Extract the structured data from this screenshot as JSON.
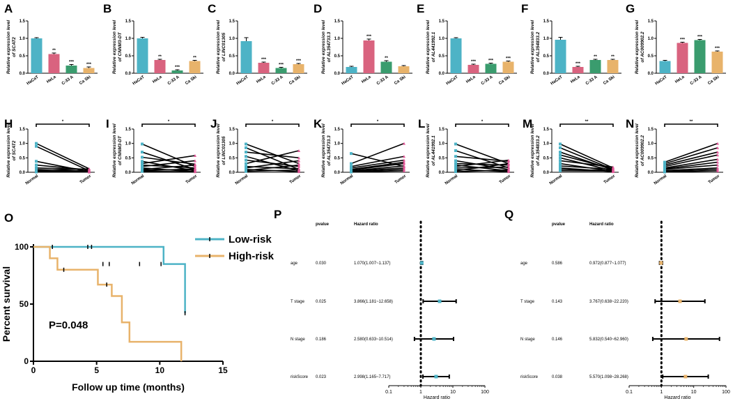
{
  "chart_data": [
    {
      "panel": "A",
      "type": "bar",
      "ylabel_line1": "Relative expression level",
      "ylabel_line2": "of SCAT2",
      "categories": [
        "HaCaT",
        "HeLa",
        "C-33 A",
        "Ca Ski"
      ],
      "values": [
        1.0,
        0.55,
        0.22,
        0.15
      ],
      "errors": [
        0.02,
        0.03,
        0.03,
        0.03
      ],
      "significance": [
        "",
        "**",
        "***",
        "***"
      ],
      "ylim": [
        0,
        1.5
      ],
      "yticks": [
        "0.0",
        "0.5",
        "1.0",
        "1.5"
      ]
    },
    {
      "panel": "B",
      "type": "bar",
      "ylabel_line1": "Relative expression level",
      "ylabel_line2": "of CNNM3-DT",
      "categories": [
        "HaCaT",
        "HeLa",
        "C-33 A",
        "Ca Ski"
      ],
      "values": [
        1.0,
        0.38,
        0.08,
        0.35
      ],
      "errors": [
        0.03,
        0.02,
        0.02,
        0.02
      ],
      "significance": [
        "",
        "**",
        "***",
        "**"
      ],
      "ylim": [
        0,
        1.5
      ],
      "yticks": [
        "0.0",
        "0.5",
        "1.0",
        "1.5"
      ]
    },
    {
      "panel": "C",
      "type": "bar",
      "ylabel_line1": "Relative expression level",
      "ylabel_line2": "of LINC01305",
      "categories": [
        "HaCaT",
        "HeLa",
        "C-33 A",
        "Ca Ski"
      ],
      "values": [
        0.92,
        0.3,
        0.15,
        0.26
      ],
      "errors": [
        0.1,
        0.02,
        0.02,
        0.02
      ],
      "significance": [
        "",
        "***",
        "***",
        "***"
      ],
      "ylim": [
        0,
        1.5
      ],
      "yticks": [
        "0.0",
        "0.5",
        "1.0",
        "1.5"
      ]
    },
    {
      "panel": "D",
      "type": "bar",
      "ylabel_line1": "Relative expression level",
      "ylabel_line2": "of AL354733.3",
      "categories": [
        "HaCaT",
        "HeLa",
        "C-33 A",
        "Ca Ski"
      ],
      "values": [
        0.18,
        0.94,
        0.33,
        0.2
      ],
      "errors": [
        0.02,
        0.04,
        0.03,
        0.02
      ],
      "significance": [
        "",
        "***",
        "**",
        ""
      ],
      "ylim": [
        0,
        1.5
      ],
      "yticks": [
        "0.0",
        "0.5",
        "1.0",
        "1.5"
      ]
    },
    {
      "panel": "E",
      "type": "bar",
      "ylabel_line1": "Relative expression level",
      "ylabel_line2": "of AL441992.1",
      "categories": [
        "HaCaT",
        "HeLa",
        "C-33 A",
        "Ca Ski"
      ],
      "values": [
        1.0,
        0.24,
        0.27,
        0.33
      ],
      "errors": [
        0.02,
        0.02,
        0.02,
        0.02
      ],
      "significance": [
        "",
        "***",
        "***",
        "***"
      ],
      "ylim": [
        0,
        1.5
      ],
      "yticks": [
        "0.0",
        "0.5",
        "1.0",
        "1.5"
      ]
    },
    {
      "panel": "F",
      "type": "bar",
      "ylabel_line1": "Relative expression level",
      "ylabel_line2": "of AL354833.2",
      "categories": [
        "HaCaT",
        "HeLa",
        "C-33 A",
        "Ca Ski"
      ],
      "values": [
        0.96,
        0.18,
        0.38,
        0.38
      ],
      "errors": [
        0.07,
        0.02,
        0.02,
        0.02
      ],
      "significance": [
        "",
        "***",
        "**",
        "**"
      ],
      "ylim": [
        0,
        1.5
      ],
      "yticks": [
        "0.0",
        "0.5",
        "1.0",
        "1.5"
      ]
    },
    {
      "panel": "G",
      "type": "bar",
      "ylabel_line1": "Relative expression level",
      "ylabel_line2": "of AC009902.2",
      "categories": [
        "HaCaT",
        "HeLa",
        "C-33 A",
        "Ca Ski"
      ],
      "values": [
        0.35,
        0.87,
        0.95,
        0.62
      ],
      "errors": [
        0.02,
        0.02,
        0.02,
        0.02
      ],
      "significance": [
        "",
        "***",
        "***",
        "***"
      ],
      "ylim": [
        0,
        1.5
      ],
      "yticks": [
        "0.0",
        "0.5",
        "1.0",
        "1.5"
      ]
    },
    {
      "panel": "H",
      "type": "paired",
      "ylabel_line1": "Relative expression level",
      "ylabel_line2": "of SCAT2",
      "categories": [
        "Normal",
        "Tumor"
      ],
      "significance": "*",
      "ylim": [
        0,
        1.5
      ],
      "yticks": [
        "0.0",
        "0.5",
        "1.0",
        "1.5"
      ],
      "pairs": [
        [
          1.0,
          0.12
        ],
        [
          0.9,
          0.05
        ],
        [
          0.38,
          0.02
        ],
        [
          0.25,
          0.08
        ],
        [
          0.15,
          0.1
        ],
        [
          0.1,
          0.03
        ],
        [
          0.06,
          0.12
        ],
        [
          0.04,
          0.02
        ],
        [
          0.02,
          0.06
        ],
        [
          0.01,
          0.01
        ]
      ]
    },
    {
      "panel": "I",
      "type": "paired",
      "ylabel_line1": "Relative expression level",
      "ylabel_line2": "of CNNM3-DT",
      "categories": [
        "Normal",
        "Tumor"
      ],
      "significance": "*",
      "ylim": [
        0,
        1.5
      ],
      "yticks": [
        "0.0",
        "0.5",
        "1.0",
        "1.5"
      ],
      "pairs": [
        [
          0.98,
          0.2
        ],
        [
          0.7,
          0.1
        ],
        [
          0.52,
          0.28
        ],
        [
          0.38,
          0.05
        ],
        [
          0.3,
          0.58
        ],
        [
          0.25,
          0.15
        ],
        [
          0.2,
          0.4
        ],
        [
          0.15,
          0.02
        ],
        [
          0.1,
          0.25
        ],
        [
          0.08,
          0.08
        ],
        [
          0.05,
          0.12
        ],
        [
          0.03,
          0.02
        ]
      ]
    },
    {
      "panel": "J",
      "type": "paired",
      "ylabel_line1": "Relative expression level",
      "ylabel_line2": "of LINC01305",
      "categories": [
        "Normal",
        "Tumor"
      ],
      "significance": "*",
      "ylim": [
        0,
        1.5
      ],
      "yticks": [
        "0.0",
        "0.5",
        "1.0",
        "1.5"
      ],
      "pairs": [
        [
          0.98,
          0.3
        ],
        [
          0.85,
          0.1
        ],
        [
          0.7,
          0.5
        ],
        [
          0.55,
          0.05
        ],
        [
          0.42,
          0.2
        ],
        [
          0.3,
          0.75
        ],
        [
          0.2,
          0.12
        ],
        [
          0.15,
          0.4
        ],
        [
          0.1,
          0.02
        ],
        [
          0.06,
          0.25
        ],
        [
          0.03,
          0.08
        ]
      ]
    },
    {
      "panel": "K",
      "type": "paired",
      "ylabel_line1": "Relative expression level",
      "ylabel_line2": "of AL354733.3",
      "categories": [
        "Normal",
        "Tumor"
      ],
      "significance": "*",
      "ylim": [
        0,
        1.5
      ],
      "yticks": [
        "0.0",
        "0.5",
        "1.0",
        "1.5"
      ],
      "pairs": [
        [
          0.65,
          0.2
        ],
        [
          0.3,
          1.0
        ],
        [
          0.2,
          0.55
        ],
        [
          0.15,
          0.42
        ],
        [
          0.1,
          0.35
        ],
        [
          0.08,
          0.3
        ],
        [
          0.05,
          0.22
        ],
        [
          0.04,
          0.15
        ],
        [
          0.02,
          0.1
        ],
        [
          0.01,
          0.05
        ]
      ]
    },
    {
      "panel": "L",
      "type": "paired",
      "ylabel_line1": "Relative expression level",
      "ylabel_line2": "of AL441992.1",
      "categories": [
        "Normal",
        "Tumor"
      ],
      "significance": "*",
      "ylim": [
        0,
        1.5
      ],
      "yticks": [
        "0.0",
        "0.5",
        "1.0",
        "1.5"
      ],
      "pairs": [
        [
          0.98,
          0.3
        ],
        [
          0.75,
          0.15
        ],
        [
          0.55,
          0.38
        ],
        [
          0.4,
          0.1
        ],
        [
          0.3,
          0.25
        ],
        [
          0.25,
          0.05
        ],
        [
          0.2,
          0.42
        ],
        [
          0.15,
          0.18
        ],
        [
          0.1,
          0.02
        ],
        [
          0.05,
          0.3
        ],
        [
          0.02,
          0.08
        ]
      ]
    },
    {
      "panel": "M",
      "type": "paired",
      "ylabel_line1": "Relative expression level",
      "ylabel_line2": "of AL354833.2",
      "categories": [
        "Normal",
        "Tumor"
      ],
      "significance": "**",
      "ylim": [
        0,
        1.5
      ],
      "yticks": [
        "0.0",
        "0.5",
        "1.0",
        "1.5"
      ],
      "pairs": [
        [
          0.98,
          0.15
        ],
        [
          0.85,
          0.1
        ],
        [
          0.7,
          0.08
        ],
        [
          0.6,
          0.12
        ],
        [
          0.5,
          0.05
        ],
        [
          0.4,
          0.18
        ],
        [
          0.3,
          0.03
        ],
        [
          0.22,
          0.1
        ],
        [
          0.15,
          0.02
        ],
        [
          0.1,
          0.06
        ],
        [
          0.05,
          0.04
        ]
      ]
    },
    {
      "panel": "N",
      "type": "paired",
      "ylabel_line1": "Relative expression level",
      "ylabel_line2": "of AC009902.2",
      "categories": [
        "Normal",
        "Tumor"
      ],
      "significance": "**",
      "ylim": [
        0,
        1.5
      ],
      "yticks": [
        "0.0",
        "0.5",
        "1.0",
        "1.5"
      ],
      "pairs": [
        [
          0.35,
          1.0
        ],
        [
          0.3,
          0.85
        ],
        [
          0.25,
          0.7
        ],
        [
          0.2,
          0.6
        ],
        [
          0.15,
          0.45
        ],
        [
          0.12,
          0.35
        ],
        [
          0.1,
          0.25
        ],
        [
          0.06,
          0.15
        ],
        [
          0.03,
          0.1
        ],
        [
          0.01,
          0.05
        ]
      ]
    },
    {
      "panel": "O",
      "type": "line",
      "ylabel": "Percent survival",
      "xlabel": "Follow up time (months)",
      "xlim": [
        0,
        15
      ],
      "ylim": [
        0,
        100
      ],
      "xticks": [
        "0",
        "5",
        "10",
        "15"
      ],
      "yticks": [
        "0",
        "50",
        "100"
      ],
      "annotation": "P=0.048",
      "series": [
        {
          "name": "Low-risk",
          "color": "#4db3c6",
          "x": [
            0,
            4.7,
            10.3,
            12.0
          ],
          "y": [
            100,
            100,
            85,
            42
          ],
          "censor_x": [
            1.5,
            4.3,
            4.6,
            5.5,
            6.0,
            8.4,
            10.1,
            12.0
          ],
          "censor_y": [
            100,
            100,
            100,
            85,
            85,
            85,
            85,
            42
          ]
        },
        {
          "name": "High-risk",
          "color": "#e8b36b",
          "x": [
            0,
            1.3,
            1.9,
            3.9,
            5.1,
            6.2,
            7.0,
            7.6,
            11.7
          ],
          "y": [
            100,
            90,
            80,
            80,
            67,
            57,
            34,
            17,
            0
          ],
          "censor_x": [
            2.4,
            5.8
          ],
          "censor_y": [
            80,
            67
          ]
        }
      ]
    },
    {
      "panel": "P",
      "type": "forest",
      "col_pvalue": "pvalue",
      "col_hr": "Hazard ratio",
      "xlabel": "Hazard ratio",
      "xscale": "log",
      "xlim": [
        0.1,
        100
      ],
      "xticks": [
        "0.1",
        "1",
        "10",
        "100"
      ],
      "marker_color": "#4db3c6",
      "rows": [
        {
          "label": "age",
          "pvalue": "0.030",
          "hr_text": "1.070(1.007~1.137)",
          "hr": 1.07,
          "lo": 1.007,
          "hi": 1.137
        },
        {
          "label": "T stage",
          "pvalue": "0.025",
          "hr_text": "3.866(1.181~12.658)",
          "hr": 3.866,
          "lo": 1.181,
          "hi": 12.658
        },
        {
          "label": "N stage",
          "pvalue": "0.186",
          "hr_text": "2.580(0.633~10.514)",
          "hr": 2.58,
          "lo": 0.633,
          "hi": 10.514
        },
        {
          "label": "riskScore",
          "pvalue": "0.023",
          "hr_text": "2.998(1.165~7.717)",
          "hr": 2.998,
          "lo": 1.165,
          "hi": 7.717
        }
      ]
    },
    {
      "panel": "Q",
      "type": "forest",
      "col_pvalue": "pvalue",
      "col_hr": "Hazard ratio",
      "xlabel": "Hazard ratio",
      "xscale": "log",
      "xlim": [
        0.1,
        100
      ],
      "xticks": [
        "0.1",
        "1",
        "10",
        "100"
      ],
      "marker_color": "#e8b36b",
      "rows": [
        {
          "label": "age",
          "pvalue": "0.586",
          "hr_text": "0.972(0.877~1.077)",
          "hr": 0.972,
          "lo": 0.877,
          "hi": 1.077
        },
        {
          "label": "T stage",
          "pvalue": "0.143",
          "hr_text": "3.767(0.638~22.220)",
          "hr": 3.767,
          "lo": 0.638,
          "hi": 22.22
        },
        {
          "label": "N stage",
          "pvalue": "0.146",
          "hr_text": "5.832(0.540~62.960)",
          "hr": 5.832,
          "lo": 0.54,
          "hi": 62.96
        },
        {
          "label": "riskScore",
          "pvalue": "0.038",
          "hr_text": "5.570(1.098~28.268)",
          "hr": 5.57,
          "lo": 1.098,
          "hi": 28.268
        }
      ]
    }
  ],
  "bar_colors": [
    "#4db3c6",
    "#d9637f",
    "#3a9c6e",
    "#e8b36b"
  ],
  "paired_colors": {
    "normal": "#4db3c6",
    "tumor": "#e45a9a"
  }
}
